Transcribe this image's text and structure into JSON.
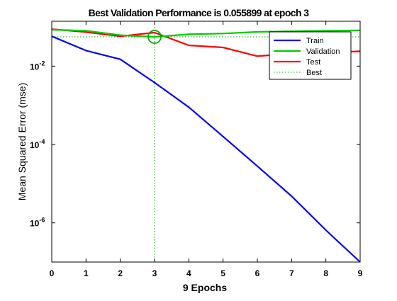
{
  "chart_data": {
    "type": "line",
    "title": "Best Validation Performance is 0.055899 at epoch 3",
    "xlabel": "9 Epochs",
    "ylabel": "Mean Squared Error  (mse)",
    "x_ticks": [
      "0",
      "1",
      "2",
      "3",
      "4",
      "5",
      "6",
      "7",
      "8",
      "9"
    ],
    "y_ticks": [
      {
        "value": 0.01,
        "base": "10",
        "exp": "-2"
      },
      {
        "value": 0.0001,
        "base": "10",
        "exp": "-4"
      },
      {
        "value": 1e-06,
        "base": "10",
        "exp": "-6"
      }
    ],
    "xlim": [
      0,
      9
    ],
    "ylim": [
      1e-07,
      0.14
    ],
    "y_scale": "log",
    "grid": false,
    "legend_position": "top-right",
    "series": [
      {
        "name": "Train",
        "color": "#0000ff",
        "style": "solid",
        "x": [
          0,
          1,
          2,
          3,
          4,
          5,
          6,
          7,
          8,
          9
        ],
        "y": [
          0.058,
          0.025,
          0.015,
          0.0038,
          0.0009,
          0.00016,
          2.8e-05,
          4.8e-06,
          6.5e-07,
          1e-07
        ]
      },
      {
        "name": "Validation",
        "color": "#00cc00",
        "style": "solid",
        "x": [
          0,
          1,
          2,
          3,
          4,
          5,
          6,
          7,
          8,
          9
        ],
        "y": [
          0.085,
          0.08,
          0.062,
          0.055899,
          0.065,
          0.068,
          0.075,
          0.078,
          0.08,
          0.082
        ]
      },
      {
        "name": "Test",
        "color": "#ff0000",
        "style": "solid",
        "x": [
          0,
          1,
          2,
          3,
          4,
          5,
          6,
          7,
          8,
          9
        ],
        "y": [
          0.088,
          0.074,
          0.058,
          0.072,
          0.034,
          0.03,
          0.018,
          0.021,
          0.022,
          0.024
        ]
      },
      {
        "name": "Best",
        "color": "#00aa00",
        "style": "dotted",
        "best_x": 3,
        "best_y": 0.055899
      }
    ]
  }
}
